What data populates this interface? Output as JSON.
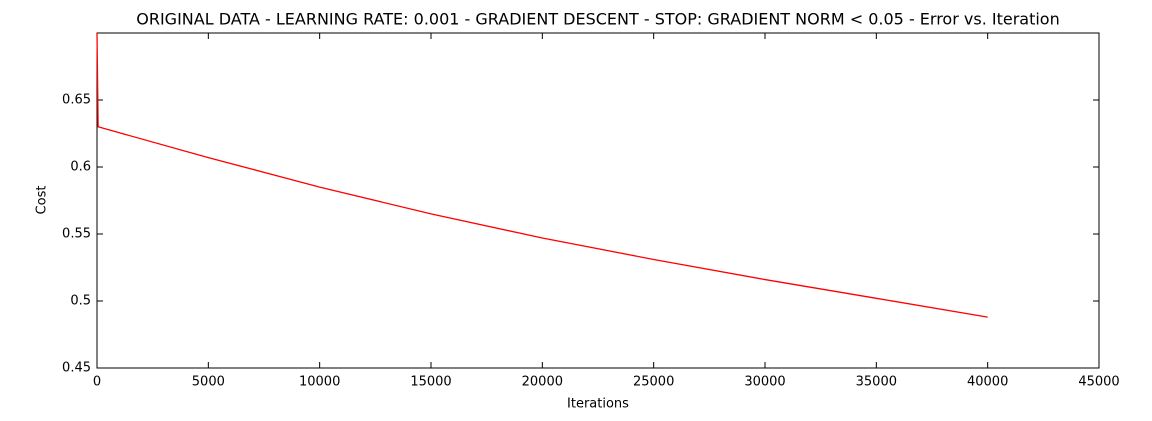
{
  "chart_data": {
    "type": "line",
    "title": "ORIGINAL DATA - LEARNING RATE: 0.001 - GRADIENT DESCENT - STOP: GRADIENT NORM < 0.05 - Error vs. Iteration",
    "x_label": "Iterations",
    "y_label": "Cost",
    "x": [
      0,
      50,
      5000,
      10000,
      15000,
      20000,
      25000,
      30000,
      35000,
      40000
    ],
    "series": [
      {
        "name": "Cost",
        "color": "#ff0000",
        "values": [
          0.7,
          0.63,
          0.607,
          0.585,
          0.565,
          0.547,
          0.531,
          0.516,
          0.502,
          0.488
        ]
      }
    ],
    "xlim": [
      0,
      45000
    ],
    "xticks": [
      0,
      5000,
      10000,
      15000,
      20000,
      25000,
      30000,
      35000,
      40000,
      45000
    ],
    "ylim": [
      0.45,
      0.7
    ],
    "yticks": [
      0.45,
      0.5,
      0.55,
      0.6,
      0.65
    ],
    "grid": false
  }
}
